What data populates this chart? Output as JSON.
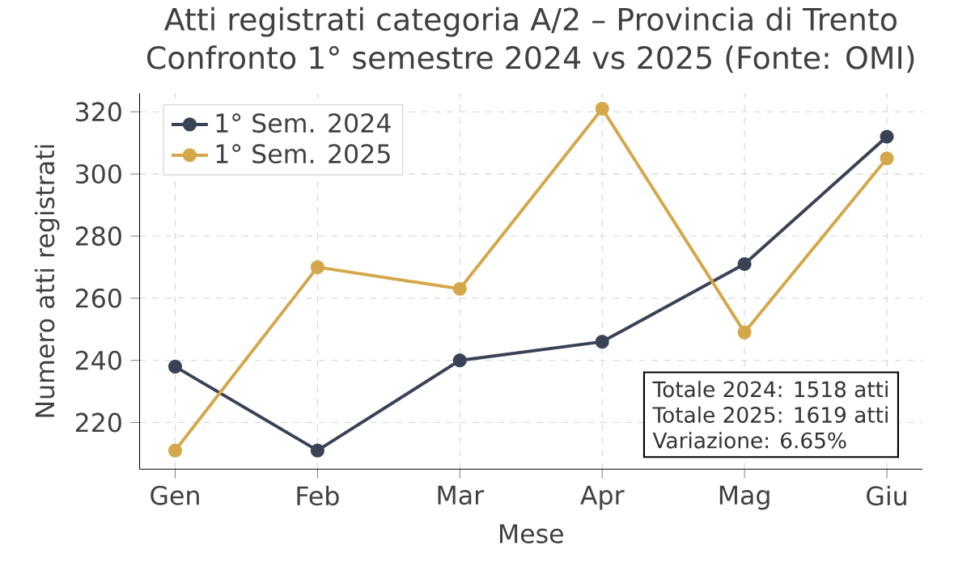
{
  "chart_data": {
    "type": "line",
    "title": "Atti registrati categoria A/2 – Provincia di Trento",
    "subtitle": "Confronto 1° semestre 2024 vs 2025 (Fonte: OMI)",
    "xlabel": "Mese",
    "ylabel": "Numero atti registrati",
    "categories": [
      "Gen",
      "Feb",
      "Mar",
      "Apr",
      "Mag",
      "Giu"
    ],
    "series": [
      {
        "name": "1° Sem. 2024",
        "color": "#3b4256",
        "values": [
          238,
          211,
          240,
          246,
          271,
          312
        ]
      },
      {
        "name": "1° Sem. 2025",
        "color": "#d4a84a",
        "values": [
          211,
          270,
          263,
          321,
          249,
          305
        ]
      }
    ],
    "ylim": [
      205,
      326
    ],
    "yticks": [
      220,
      240,
      260,
      280,
      300,
      320
    ],
    "annotations": [
      "Totale 2024: 1518 atti",
      "Totale 2025: 1619 atti",
      "Variazione: 6.65%"
    ],
    "grid": true,
    "legend": "top left",
    "marker": "circle",
    "line_style": "solid"
  }
}
